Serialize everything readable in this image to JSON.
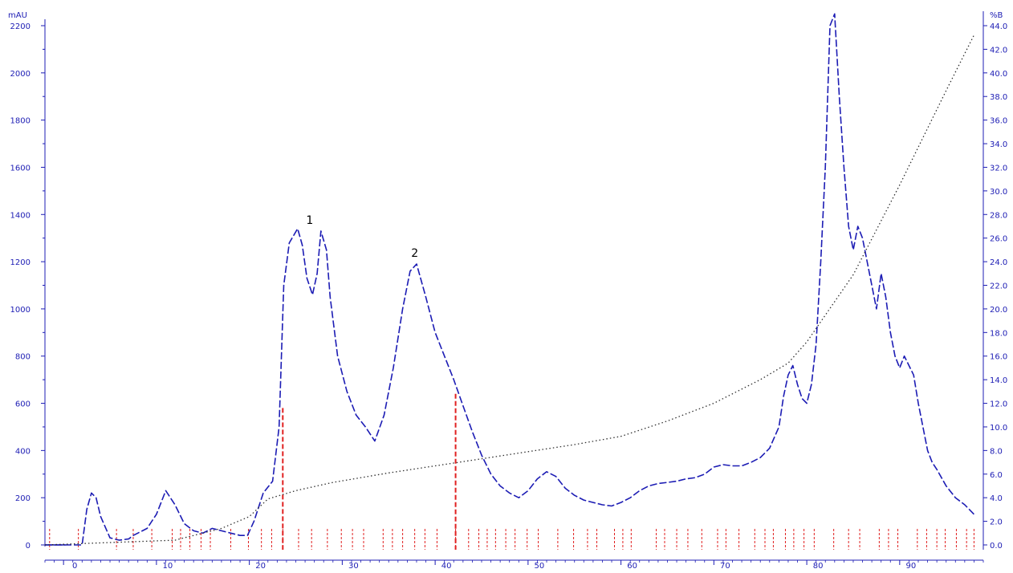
{
  "chart_data": {
    "type": "line",
    "title": "",
    "xlabel": "",
    "ylabel": "",
    "y_unit_label": "mAU",
    "y2_unit_label": "%B",
    "xlim": [
      -2,
      99
    ],
    "ylim": [
      0,
      2200
    ],
    "y2lim": [
      0,
      44
    ],
    "x_ticks": [
      0,
      10,
      20,
      30,
      40,
      50,
      60,
      70,
      80,
      90
    ],
    "x_tick_labels": [
      "0",
      "10",
      "20",
      "30",
      "40",
      "50",
      "60",
      "70",
      "80",
      "90"
    ],
    "y_ticks": [
      0,
      200,
      400,
      600,
      800,
      1000,
      1200,
      1400,
      1600,
      1800,
      2000,
      2200
    ],
    "y_tick_labels": [
      "0",
      "200",
      "400",
      "600",
      "800",
      "1000",
      "1200",
      "1400",
      "1600",
      "1800",
      "2000",
      "2200"
    ],
    "y2_ticks": [
      0,
      2,
      4,
      6,
      8,
      10,
      12,
      14,
      16,
      18,
      20,
      22,
      24,
      26,
      28,
      30,
      32,
      34,
      36,
      38,
      40,
      42,
      44
    ],
    "y2_tick_labels": [
      "0.0",
      "2.0",
      "4.0",
      "6.0",
      "8.0",
      "10.0",
      "12.0",
      "14.0",
      "16.0",
      "18.0",
      "20.0",
      "22.0",
      "24.0",
      "26.0",
      "28.0",
      "30.0",
      "32.0",
      "34.0",
      "36.0",
      "38.0",
      "40.0",
      "42.0",
      "44.0"
    ],
    "grid": false,
    "legend": "none",
    "colors": {
      "absorbance": "#1c1cb4",
      "gradient": "#303030",
      "fraction": "#e02020",
      "axis": "#1c1cb4"
    },
    "series": [
      {
        "key": "absorbance",
        "style": "dashed",
        "x": [
          -2,
          0,
          1.5,
          2,
          2.5,
          3,
          3.5,
          4,
          5,
          6,
          7,
          7.5,
          8,
          9,
          10,
          11,
          12,
          13,
          14,
          15,
          16,
          17,
          18,
          19,
          19.8,
          20.5,
          21.5,
          22.5,
          23.2,
          23.7,
          24.3,
          25.2,
          25.7,
          26.2,
          26.8,
          27.3,
          27.7,
          28.3,
          28.7,
          29.5,
          30.5,
          31.5,
          32.5,
          33.5,
          34.5,
          35.5,
          36.5,
          37.3,
          38,
          39,
          40,
          41,
          42,
          43,
          44,
          45,
          46,
          47,
          48,
          49,
          50,
          51,
          52,
          53,
          54,
          55,
          56,
          57,
          58,
          59,
          60,
          61,
          62,
          63,
          64,
          65,
          66,
          67,
          68,
          69,
          70,
          71,
          72,
          73,
          74,
          75,
          76,
          77,
          77.5,
          78,
          78.5,
          79,
          79.5,
          80,
          80.5,
          81,
          81.5,
          82,
          82.5,
          83,
          83.5,
          84,
          84.5,
          85,
          85.5,
          86,
          86.5,
          87,
          87.5,
          88,
          88.5,
          89,
          89.5,
          90,
          90.5,
          91,
          91.5,
          92,
          92.5,
          93,
          93.5,
          94,
          95,
          96,
          97,
          98
        ],
        "y": [
          0,
          0,
          0,
          0,
          150,
          220,
          200,
          120,
          30,
          20,
          25,
          40,
          50,
          70,
          130,
          230,
          170,
          90,
          60,
          50,
          70,
          60,
          50,
          40,
          40,
          100,
          220,
          270,
          500,
          1100,
          1280,
          1340,
          1270,
          1130,
          1060,
          1150,
          1330,
          1250,
          1050,
          800,
          650,
          550,
          500,
          440,
          550,
          750,
          1000,
          1160,
          1190,
          1050,
          900,
          800,
          700,
          590,
          480,
          380,
          300,
          250,
          220,
          200,
          230,
          280,
          310,
          290,
          240,
          210,
          190,
          180,
          170,
          165,
          180,
          200,
          230,
          250,
          260,
          265,
          270,
          280,
          285,
          300,
          330,
          340,
          335,
          335,
          350,
          370,
          410,
          500,
          630,
          720,
          760,
          680,
          620,
          600,
          680,
          850,
          1200,
          1600,
          2200,
          2250,
          1900,
          1600,
          1350,
          1250,
          1350,
          1300,
          1200,
          1100,
          1000,
          1150,
          1050,
          900,
          800,
          750,
          800,
          760,
          720,
          600,
          500,
          400,
          350,
          320,
          250,
          200,
          170,
          130
        ],
        "y_axis": "left"
      },
      {
        "key": "gradient",
        "style": "dotted",
        "x": [
          -2,
          12,
          17,
          20,
          22,
          25,
          29,
          35,
          40,
          45,
          50,
          55,
          60,
          65,
          70,
          75,
          78,
          80,
          85,
          90,
          95,
          98
        ],
        "y": [
          0,
          0.4,
          1.4,
          2.4,
          3.9,
          4.6,
          5.3,
          6.1,
          6.7,
          7.3,
          7.9,
          8.5,
          9.2,
          10.5,
          12.0,
          14.0,
          15.4,
          17.2,
          22.9,
          30.5,
          38.5,
          43.2
        ],
        "y_axis": "right"
      }
    ],
    "annotations": [
      {
        "text": "1",
        "x": 26.5,
        "y": 1360
      },
      {
        "text": "2",
        "x": 37.8,
        "y": 1220
      }
    ],
    "fraction_markers": {
      "tall": [
        {
          "x": 23.6,
          "y": 580
        },
        {
          "x": 42.2,
          "y": 640
        }
      ],
      "ticks": [
        -1.5,
        1.6,
        5.7,
        7.5,
        9.5,
        11.7,
        12.6,
        13.6,
        14.8,
        15.8,
        18.0,
        19.9,
        21.3,
        22.4,
        23.6,
        25.3,
        26.7,
        28.4,
        29.9,
        31.1,
        32.3,
        34.4,
        35.4,
        36.5,
        37.8,
        38.9,
        40.2,
        42.2,
        43.6,
        44.7,
        45.6,
        46.5,
        47.6,
        48.6,
        49.9,
        51.1,
        53.2,
        54.9,
        56.4,
        57.4,
        59.3,
        60.2,
        61.1,
        63.8,
        64.7,
        66.0,
        67.2,
        68.7,
        70.4,
        71.3,
        72.7,
        74.4,
        75.5,
        76.4,
        77.7,
        78.6,
        79.7,
        80.8,
        82.9,
        84.5,
        85.7,
        87.8,
        88.8,
        89.8,
        91.9,
        92.9,
        94.0,
        94.9,
        96.1,
        97.2,
        98.0
      ]
    }
  }
}
